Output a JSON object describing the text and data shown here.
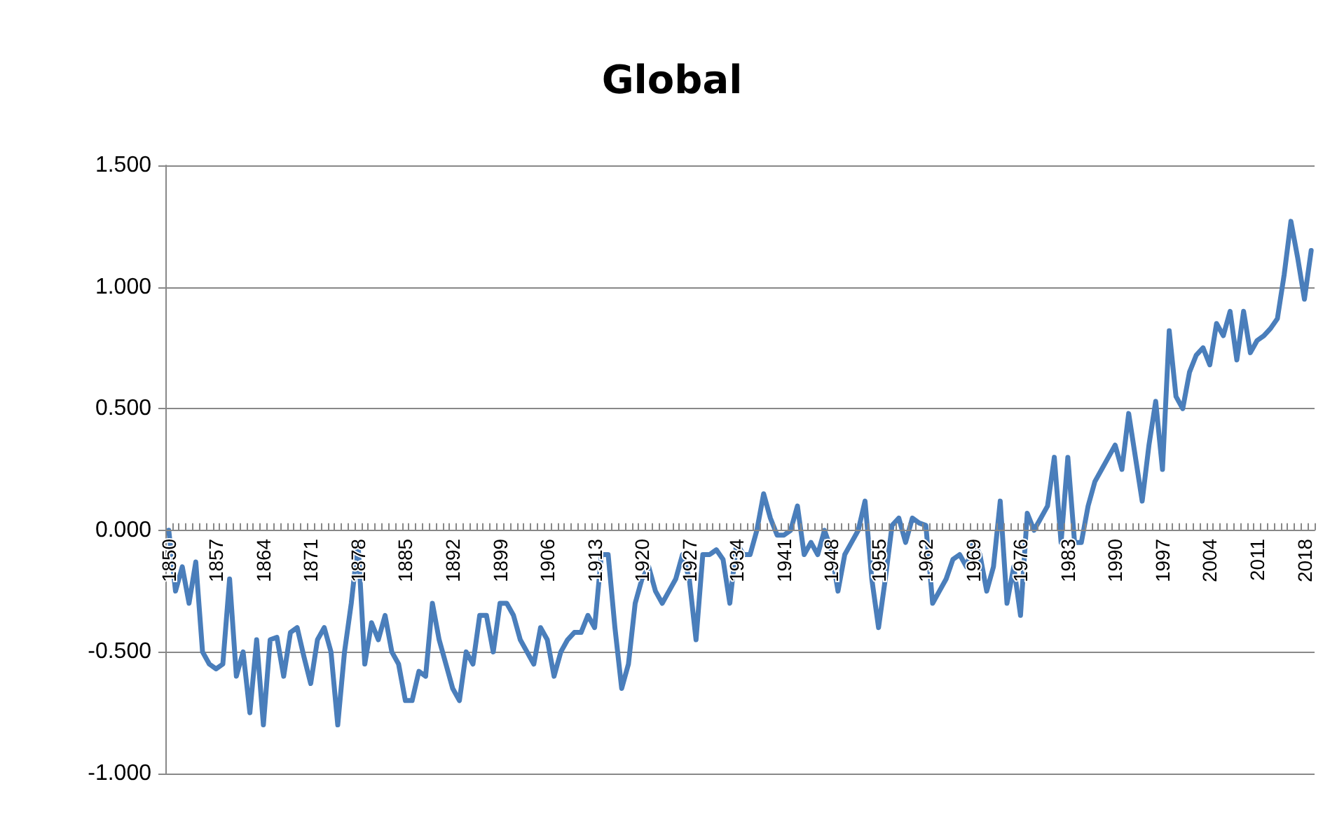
{
  "chart_data": {
    "type": "line",
    "title": "Global",
    "categories": [
      "1850",
      null,
      null,
      null,
      null,
      null,
      null,
      "1857",
      null,
      null,
      null,
      null,
      null,
      null,
      "1864",
      null,
      null,
      null,
      null,
      null,
      null,
      "1871",
      null,
      null,
      null,
      null,
      null,
      null,
      "1878",
      null,
      null,
      null,
      null,
      null,
      null,
      "1885",
      null,
      null,
      null,
      null,
      null,
      null,
      "1892",
      null,
      null,
      null,
      null,
      null,
      null,
      "1899",
      null,
      null,
      null,
      null,
      null,
      null,
      "1906",
      null,
      null,
      null,
      null,
      null,
      null,
      "1913",
      null,
      null,
      null,
      null,
      null,
      null,
      "1920",
      null,
      null,
      null,
      null,
      null,
      null,
      "1927",
      null,
      null,
      null,
      null,
      null,
      null,
      "1934",
      null,
      null,
      null,
      null,
      null,
      null,
      "1941",
      null,
      null,
      null,
      null,
      null,
      null,
      "1948",
      null,
      null,
      null,
      null,
      null,
      null,
      "1955",
      null,
      null,
      null,
      null,
      null,
      null,
      "1962",
      null,
      null,
      null,
      null,
      null,
      null,
      "1969",
      null,
      null,
      null,
      null,
      null,
      null,
      "1976",
      null,
      null,
      null,
      null,
      null,
      null,
      "1983",
      null,
      null,
      null,
      null,
      null,
      null,
      "1990",
      null,
      null,
      null,
      null,
      null,
      null,
      "1997",
      null,
      null,
      null,
      null,
      null,
      null,
      "2004",
      null,
      null,
      null,
      null,
      null,
      null,
      "2011",
      null,
      null,
      null,
      null,
      null,
      null,
      "2018",
      null
    ],
    "series": [
      {
        "color": "#4a7ebb",
        "values": [
          0.0,
          -0.25,
          -0.15,
          -0.3,
          -0.13,
          -0.5,
          -0.55,
          -0.57,
          -0.55,
          -0.2,
          -0.6,
          -0.5,
          -0.75,
          -0.45,
          -0.8,
          -0.45,
          -0.44,
          -0.6,
          -0.42,
          -0.4,
          -0.52,
          -0.63,
          -0.45,
          -0.4,
          -0.5,
          -0.8,
          -0.5,
          -0.3,
          -0.05,
          -0.55,
          -0.38,
          -0.45,
          -0.35,
          -0.5,
          -0.55,
          -0.7,
          -0.7,
          -0.58,
          -0.6,
          -0.3,
          -0.45,
          -0.55,
          -0.65,
          -0.7,
          -0.5,
          -0.55,
          -0.35,
          -0.35,
          -0.5,
          -0.3,
          -0.3,
          -0.35,
          -0.45,
          -0.5,
          -0.55,
          -0.4,
          -0.45,
          -0.6,
          -0.5,
          -0.45,
          -0.42,
          -0.42,
          -0.35,
          -0.4,
          -0.1,
          -0.1,
          -0.4,
          -0.65,
          -0.55,
          -0.3,
          -0.2,
          -0.15,
          -0.25,
          -0.3,
          -0.25,
          -0.2,
          -0.1,
          -0.2,
          -0.45,
          -0.1,
          -0.1,
          -0.08,
          -0.12,
          -0.3,
          -0.05,
          -0.1,
          -0.1,
          0.0,
          0.15,
          0.05,
          -0.02,
          -0.02,
          0.0,
          0.1,
          -0.1,
          -0.05,
          -0.1,
          0.0,
          -0.08,
          -0.25,
          -0.1,
          -0.05,
          0.0,
          0.12,
          -0.2,
          -0.4,
          -0.2,
          0.02,
          0.05,
          -0.05,
          0.05,
          0.03,
          0.02,
          -0.3,
          -0.25,
          -0.2,
          -0.12,
          -0.1,
          -0.15,
          -0.05,
          -0.1,
          -0.25,
          -0.15,
          0.12,
          -0.3,
          -0.15,
          -0.35,
          0.07,
          0.0,
          0.05,
          0.1,
          0.3,
          -0.05,
          0.3,
          -0.05,
          -0.05,
          0.1,
          0.2,
          0.25,
          0.3,
          0.35,
          0.25,
          0.48,
          0.3,
          0.12,
          0.35,
          0.53,
          0.25,
          0.82,
          0.55,
          0.5,
          0.65,
          0.72,
          0.75,
          0.68,
          0.85,
          0.8,
          0.9,
          0.7,
          0.9,
          0.73,
          0.78,
          0.8,
          0.83,
          0.87,
          1.05,
          1.27,
          1.12,
          0.95,
          1.15
        ]
      }
    ],
    "ylim": [
      -1.0,
      1.5
    ],
    "yticks": [
      {
        "value": -1.0,
        "label": "-1.000"
      },
      {
        "value": -0.5,
        "label": "-0.500"
      },
      {
        "value": 0.0,
        "label": "0.000"
      },
      {
        "value": 0.5,
        "label": "0.500"
      },
      {
        "value": 1.0,
        "label": "1.000"
      },
      {
        "value": 1.5,
        "label": "1.500"
      }
    ],
    "grid": "y",
    "marker": "none",
    "line_style": "solid"
  }
}
